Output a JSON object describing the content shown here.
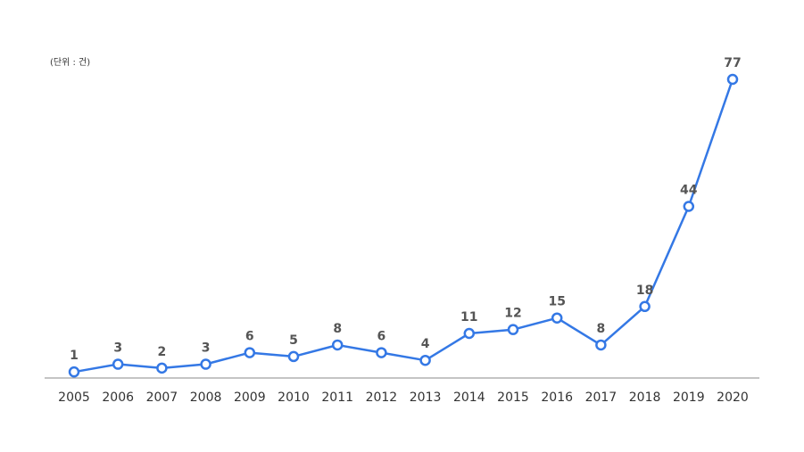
{
  "chart_data": {
    "type": "line",
    "unit_note": "(단위 : 건)",
    "categories": [
      "2005",
      "2006",
      "2007",
      "2008",
      "2009",
      "2010",
      "2011",
      "2012",
      "2013",
      "2014",
      "2015",
      "2016",
      "2017",
      "2018",
      "2019",
      "2020"
    ],
    "series": [
      {
        "values": [
          1,
          3,
          2,
          3,
          6,
          5,
          8,
          6,
          4,
          11,
          12,
          15,
          8,
          18,
          44,
          77
        ],
        "color": "#3478e5"
      }
    ],
    "data_labels": [
      "1",
      "3",
      "2",
      "3",
      "6",
      "5",
      "8",
      "6",
      "4",
      "11",
      "12",
      "15",
      "8",
      "18",
      "44",
      "77"
    ],
    "ylim": [
      0,
      77
    ],
    "grid": false,
    "legend": "none",
    "axis_color": "#888888"
  }
}
